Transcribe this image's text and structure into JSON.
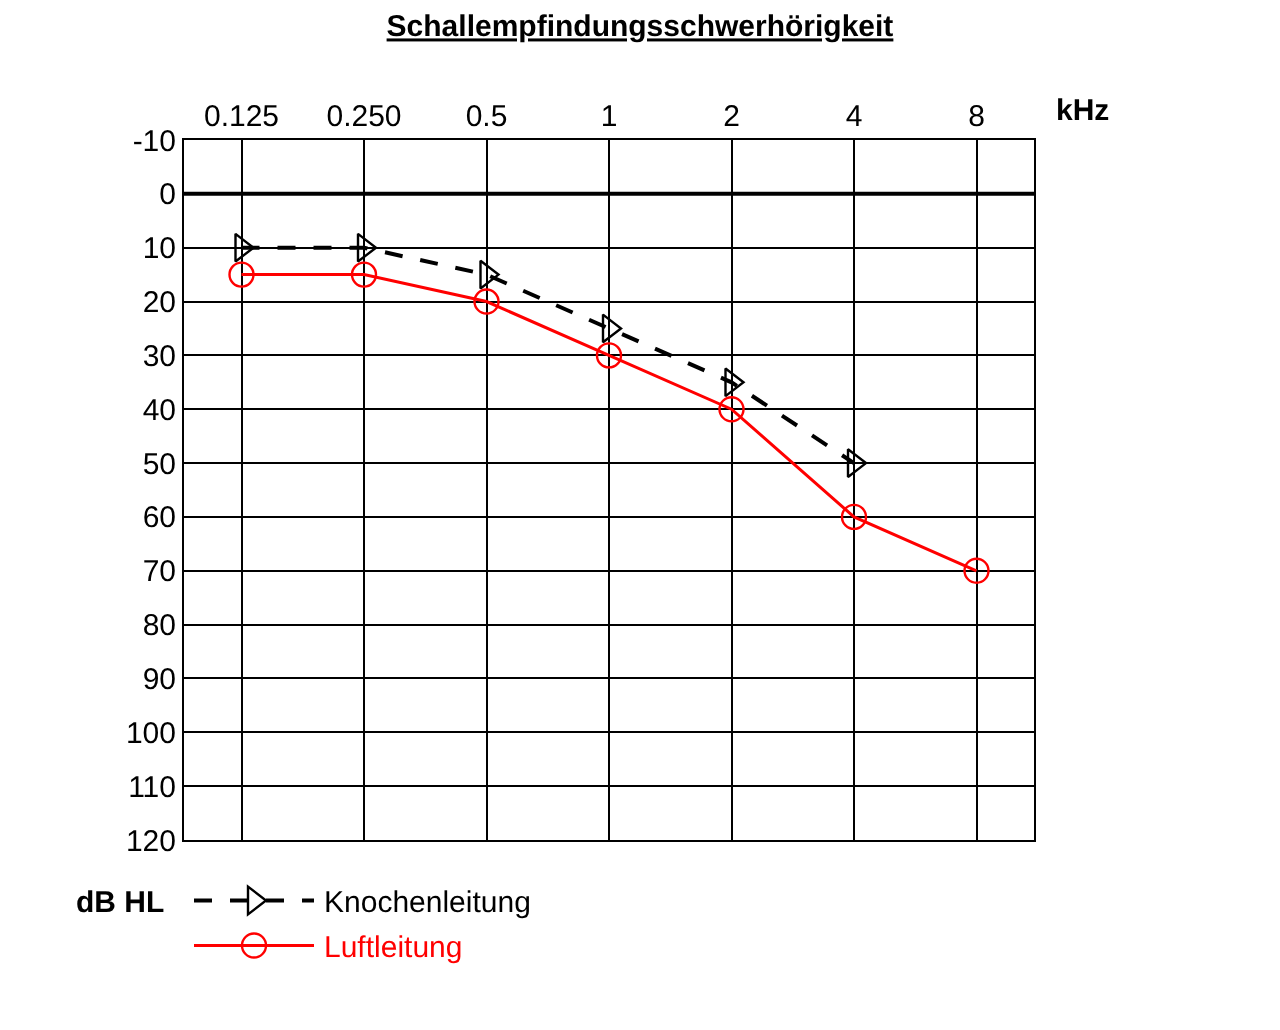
{
  "chart_data": {
    "type": "line",
    "title": "Schallempfindungsschwerhörigkeit",
    "xlabel": "kHz",
    "ylabel": "dB HL",
    "categories": [
      "0.125",
      "0.250",
      "0.5",
      "1",
      "2",
      "4",
      "8"
    ],
    "series": [
      {
        "name": "Knochenleitung",
        "color": "#000000",
        "values": [
          10,
          10,
          15,
          25,
          35,
          50,
          null
        ],
        "line_style": "dashed",
        "marker": "triangle"
      },
      {
        "name": "Luftleitung",
        "color": "#ff0000",
        "values": [
          15,
          15,
          20,
          30,
          40,
          60,
          70
        ],
        "line_style": "solid",
        "marker": "circle"
      }
    ],
    "ylim": [
      120,
      -10
    ],
    "yticks": [
      -10,
      0,
      10,
      20,
      30,
      40,
      50,
      60,
      70,
      80,
      90,
      100,
      110,
      120
    ],
    "ref_lines": [
      {
        "axis": "y",
        "value": 0,
        "color": "#000000"
      }
    ],
    "grid": true,
    "legend": "bottom left"
  }
}
